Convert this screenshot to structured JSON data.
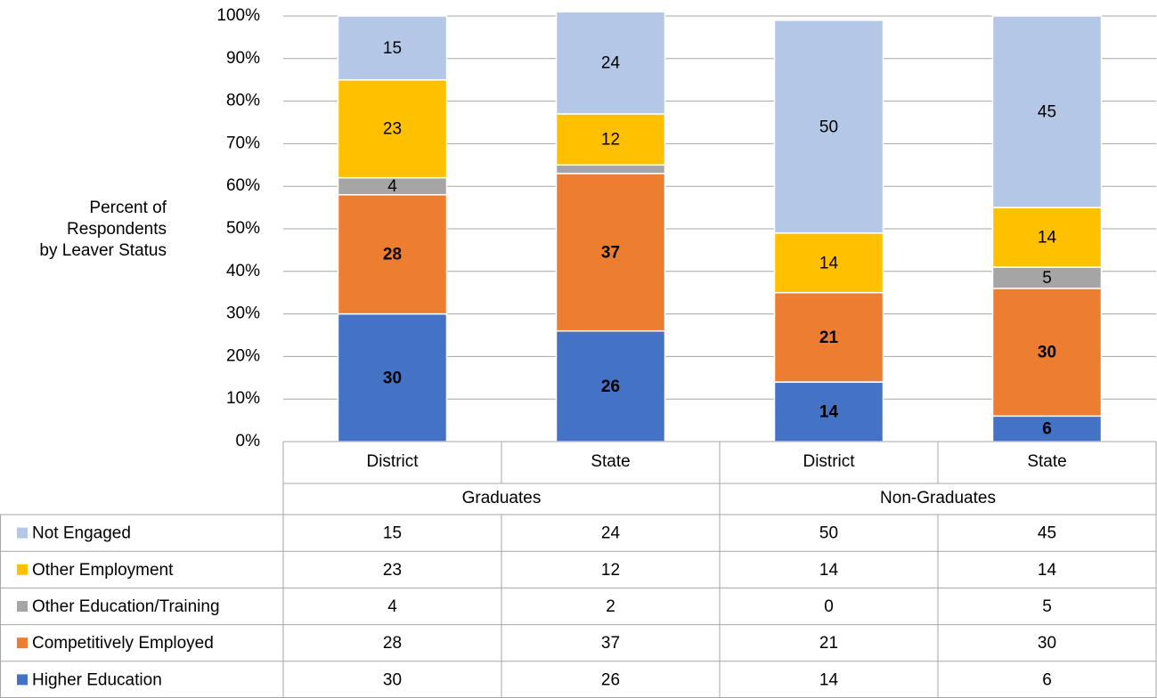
{
  "chart_data": {
    "type": "stacked_bar",
    "ylabel": [
      "Percent of",
      "Respondents",
      "by Leaver Status"
    ],
    "categories": [
      "District",
      "State",
      "District",
      "State"
    ],
    "groups": [
      "Graduates",
      "Non-Graduates"
    ],
    "series": [
      {
        "name": "Higher Education",
        "color": "#4472c4",
        "label_color": "#ffffff",
        "values": [
          30,
          26,
          14,
          6
        ]
      },
      {
        "name": "Competitively Employed",
        "color": "#ed7d31",
        "label_color": "#ffffff",
        "values": [
          28,
          37,
          21,
          30
        ]
      },
      {
        "name": "Other Education/Training",
        "color": "#a5a5a5",
        "label_color": "#000000",
        "values": [
          4,
          2,
          0,
          5
        ]
      },
      {
        "name": "Other Employment",
        "color": "#ffc000",
        "label_color": "#000000",
        "values": [
          23,
          12,
          14,
          14
        ]
      },
      {
        "name": "Not Engaged",
        "color": "#b4c7e7",
        "label_color": "#000000",
        "values": [
          15,
          24,
          50,
          45
        ]
      }
    ],
    "ylim": [
      0,
      100
    ],
    "yticks": [
      {
        "value": 0,
        "label": "0%"
      },
      {
        "value": 10,
        "label": "10%"
      },
      {
        "value": 20,
        "label": "20%"
      },
      {
        "value": 30,
        "label": "30%"
      },
      {
        "value": 40,
        "label": "40%"
      },
      {
        "value": 50,
        "label": "50%"
      },
      {
        "value": 60,
        "label": "60%"
      },
      {
        "value": 70,
        "label": "70%"
      },
      {
        "value": 80,
        "label": "80%"
      },
      {
        "value": 90,
        "label": "90%"
      },
      {
        "value": 100,
        "label": "100%"
      }
    ],
    "grid": true
  }
}
